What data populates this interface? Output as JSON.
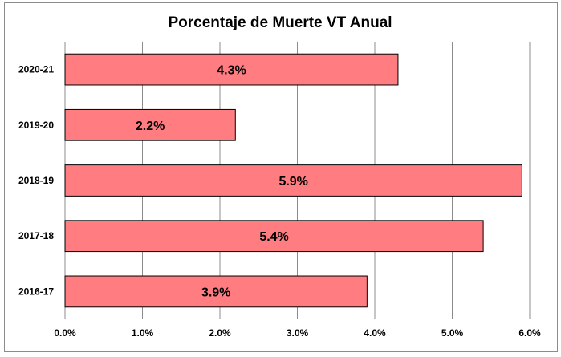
{
  "chart_data": {
    "type": "bar",
    "orientation": "horizontal",
    "title": "Porcentaje de Muerte VT Anual",
    "categories": [
      "2020-21",
      "2019-20",
      "2018-19",
      "2017-18",
      "2016-17"
    ],
    "values": [
      4.3,
      2.2,
      5.9,
      5.4,
      3.9
    ],
    "data_labels": [
      "4.3%",
      "2.2%",
      "5.9%",
      "5.4%",
      "3.9%"
    ],
    "x_ticks": [
      "0.0%",
      "1.0%",
      "2.0%",
      "3.0%",
      "4.0%",
      "5.0%",
      "6.0%"
    ],
    "xlim": [
      0,
      6
    ],
    "grid": "vertical",
    "legend": "none",
    "bar_color": "#ff7c80",
    "bar_edge_color": "#000000"
  }
}
